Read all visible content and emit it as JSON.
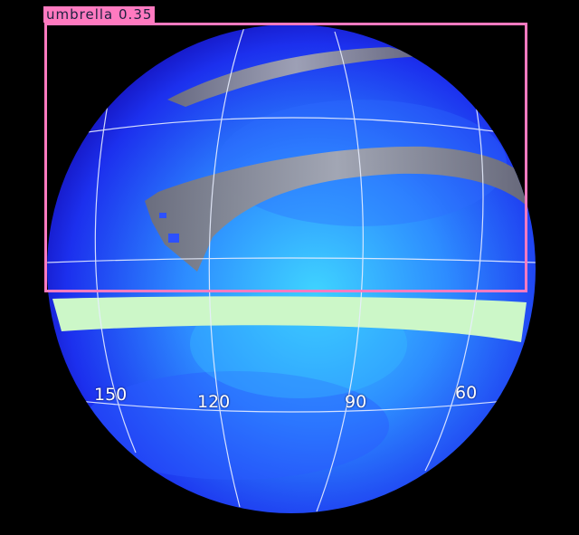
{
  "image": {
    "kind": "globe-map-with-detection-overlay",
    "background": "#000000",
    "globe_colors": [
      "#1a20e0",
      "#2d7cff",
      "#3fd4ff"
    ],
    "band_color": "#ccf7c8"
  },
  "detection": {
    "label": "umbrella 0.35",
    "box_color": "#ff7ac0"
  },
  "longitude_labels": [
    "150",
    "120",
    "90",
    "60"
  ]
}
